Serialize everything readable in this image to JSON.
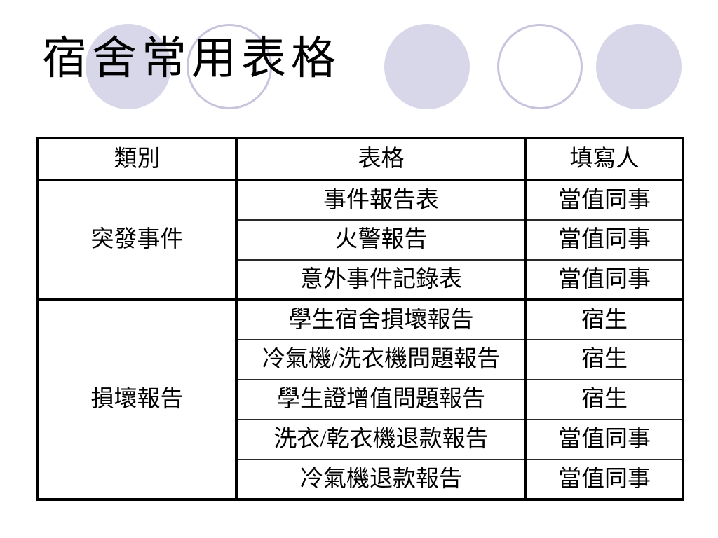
{
  "title": "宿舍常用表格",
  "decor": {
    "circle_fill": "#d8d6e9",
    "circle_stroke": "#c7c5dd",
    "circles": [
      "filled",
      "outlined",
      "filled",
      "outlined",
      "filled"
    ]
  },
  "table": {
    "headers": [
      "類別",
      "表格",
      "填寫人"
    ],
    "groups": [
      {
        "category": "突發事件",
        "rows": [
          {
            "form": "事件報告表",
            "filler": "當值同事"
          },
          {
            "form": "火警報告",
            "filler": "當值同事"
          },
          {
            "form": "意外事件記錄表",
            "filler": "當值同事"
          }
        ]
      },
      {
        "category": "損壞報告",
        "rows": [
          {
            "form": "學生宿舍損壞報告",
            "filler": "宿生"
          },
          {
            "form": "冷氣機/洗衣機問題報告",
            "filler": "宿生"
          },
          {
            "form": "學生證增值問題報告",
            "filler": "宿生"
          },
          {
            "form": "洗衣/乾衣機退款報告",
            "filler": "當值同事"
          },
          {
            "form": "冷氣機退款報告",
            "filler": "當值同事"
          }
        ]
      }
    ]
  }
}
